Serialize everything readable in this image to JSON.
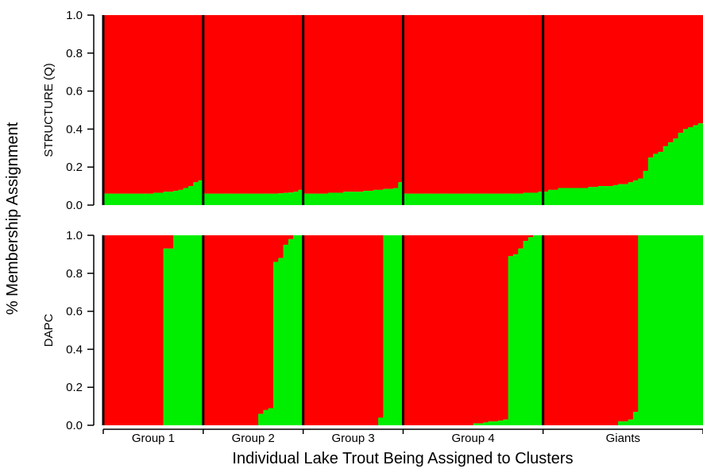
{
  "chart_data": {
    "type": "bar",
    "stacked": true,
    "ylabel": "% Membership Assignment",
    "xlabel": "Individual Lake Trout Being Assigned to Clusters",
    "groups": [
      "Group 1",
      "Group 2",
      "Group 3",
      "Group 4",
      "Giants"
    ],
    "series_colors": {
      "cluster_1": "#ff0000",
      "cluster_2": "#00ee00"
    },
    "y_ticks": [
      "0.0",
      "0.2",
      "0.4",
      "0.6",
      "0.8",
      "1.0"
    ],
    "ylim": [
      0,
      1
    ],
    "panels": [
      {
        "label": "STRUCTURE (Q)",
        "groups": [
          {
            "name": "Group 1",
            "green": [
              0.06,
              0.06,
              0.06,
              0.06,
              0.06,
              0.06,
              0.06,
              0.06,
              0.06,
              0.06,
              0.065,
              0.065,
              0.07,
              0.07,
              0.075,
              0.08,
              0.09,
              0.1,
              0.12,
              0.13
            ]
          },
          {
            "name": "Group 2",
            "green": [
              0.06,
              0.06,
              0.06,
              0.06,
              0.06,
              0.06,
              0.06,
              0.06,
              0.06,
              0.06,
              0.06,
              0.06,
              0.06,
              0.06,
              0.06,
              0.062,
              0.064,
              0.066,
              0.07,
              0.08
            ]
          },
          {
            "name": "Group 3",
            "green": [
              0.06,
              0.06,
              0.06,
              0.06,
              0.06,
              0.065,
              0.065,
              0.065,
              0.07,
              0.07,
              0.07,
              0.07,
              0.075,
              0.075,
              0.08,
              0.08,
              0.085,
              0.085,
              0.09,
              0.12
            ]
          },
          {
            "name": "Group 4",
            "green": [
              0.06,
              0.06,
              0.06,
              0.06,
              0.06,
              0.06,
              0.06,
              0.06,
              0.06,
              0.06,
              0.06,
              0.06,
              0.06,
              0.06,
              0.06,
              0.06,
              0.06,
              0.06,
              0.06,
              0.06,
              0.06,
              0.06,
              0.06,
              0.06,
              0.065,
              0.065,
              0.065,
              0.07
            ]
          },
          {
            "name": "Giants",
            "green": [
              0.07,
              0.08,
              0.08,
              0.09,
              0.09,
              0.09,
              0.09,
              0.09,
              0.09,
              0.095,
              0.095,
              0.1,
              0.1,
              0.1,
              0.105,
              0.11,
              0.11,
              0.12,
              0.13,
              0.14,
              0.18,
              0.25,
              0.27,
              0.28,
              0.31,
              0.33,
              0.35,
              0.38,
              0.4,
              0.41,
              0.42,
              0.43
            ]
          }
        ]
      },
      {
        "label": "DAPC",
        "groups": [
          {
            "name": "Group 1",
            "green": [
              0,
              0,
              0,
              0,
              0,
              0,
              0,
              0,
              0,
              0,
              0,
              0,
              0.93,
              0.93,
              1,
              1,
              1,
              1,
              1,
              1
            ]
          },
          {
            "name": "Group 2",
            "green": [
              0,
              0,
              0,
              0,
              0,
              0,
              0,
              0,
              0,
              0,
              0,
              0.06,
              0.08,
              0.09,
              0.86,
              0.88,
              0.95,
              0.98,
              1,
              1
            ]
          },
          {
            "name": "Group 3",
            "green": [
              0,
              0,
              0,
              0,
              0,
              0,
              0,
              0,
              0,
              0,
              0,
              0,
              0,
              0,
              0,
              0.04,
              1,
              1,
              1,
              1
            ]
          },
          {
            "name": "Group 4",
            "green": [
              0,
              0,
              0,
              0,
              0,
              0,
              0,
              0,
              0,
              0,
              0,
              0,
              0,
              0,
              0.01,
              0.01,
              0.015,
              0.02,
              0.02,
              0.025,
              0.03,
              0.89,
              0.9,
              0.93,
              0.97,
              0.99,
              1,
              1
            ]
          },
          {
            "name": "Giants",
            "green": [
              0,
              0,
              0,
              0,
              0,
              0,
              0,
              0,
              0,
              0,
              0,
              0,
              0,
              0,
              0,
              0.02,
              0.02,
              0.03,
              0.07,
              1,
              1,
              1,
              1,
              1,
              1,
              1,
              1,
              1,
              1,
              1,
              1,
              1
            ]
          }
        ]
      }
    ]
  }
}
